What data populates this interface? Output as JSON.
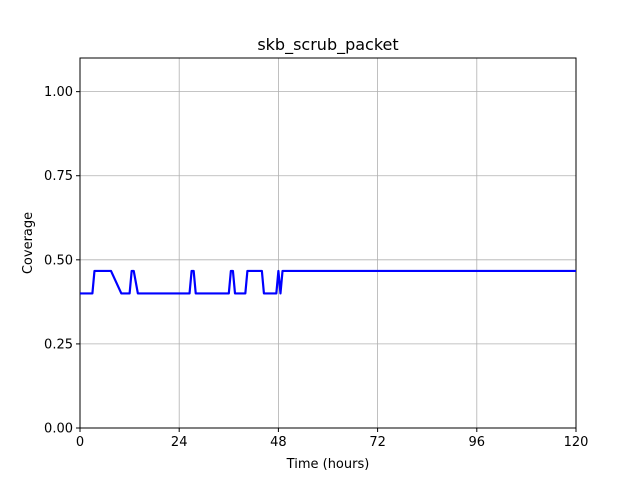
{
  "chart_data": {
    "type": "line",
    "title": "skb_scrub_packet",
    "xlabel": "Time (hours)",
    "ylabel": "Coverage",
    "xlim": [
      0,
      120
    ],
    "ylim": [
      0,
      1.1
    ],
    "xticks": [
      0,
      24,
      48,
      72,
      96,
      120
    ],
    "xtick_labels": [
      "0",
      "24",
      "48",
      "72",
      "96",
      "120"
    ],
    "yticks": [
      0.0,
      0.25,
      0.5,
      0.75,
      1.0
    ],
    "ytick_labels": [
      "0.00",
      "0.25",
      "0.50",
      "0.75",
      "1.00"
    ],
    "grid": true,
    "series": [
      {
        "color": "#0000ff",
        "x": [
          0,
          3.0,
          3.5,
          7.5,
          10,
          12,
          12.5,
          13,
          14,
          14.5,
          26.5,
          27,
          27.5,
          28,
          36,
          36.5,
          37,
          37.5,
          40,
          40.5,
          44,
          44.5,
          47.5,
          48,
          48.5,
          49,
          120
        ],
        "y": [
          0.4,
          0.4,
          0.467,
          0.467,
          0.4,
          0.4,
          0.467,
          0.467,
          0.4,
          0.4,
          0.4,
          0.467,
          0.467,
          0.4,
          0.4,
          0.467,
          0.467,
          0.4,
          0.4,
          0.467,
          0.467,
          0.4,
          0.4,
          0.467,
          0.4,
          0.467,
          0.467
        ]
      }
    ]
  }
}
